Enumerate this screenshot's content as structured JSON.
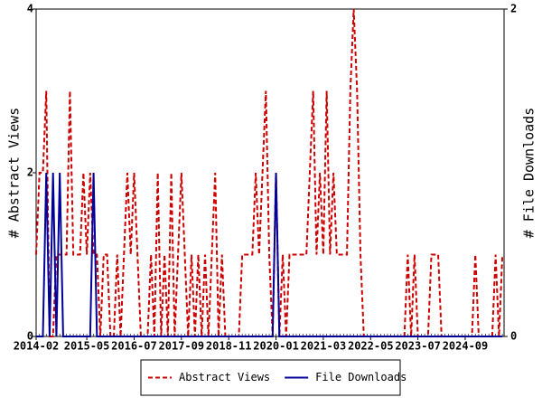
{
  "chart_data": {
    "type": "line",
    "y_label": "# Abstract Views",
    "y2_label": "# File Downloads",
    "categories": [
      "2014-02",
      null,
      null,
      null,
      null,
      null,
      null,
      null,
      null,
      null,
      null,
      null,
      null,
      null,
      null,
      "2015-05",
      null,
      null,
      null,
      null,
      null,
      null,
      null,
      null,
      null,
      null,
      null,
      null,
      null,
      "2016-07",
      null,
      null,
      null,
      null,
      null,
      null,
      null,
      null,
      null,
      null,
      null,
      null,
      null,
      "2017-09",
      null,
      null,
      null,
      null,
      null,
      null,
      null,
      null,
      null,
      null,
      null,
      null,
      null,
      "2018-11",
      null,
      null,
      null,
      null,
      null,
      null,
      null,
      null,
      null,
      null,
      null,
      null,
      null,
      "2020-01",
      null,
      null,
      null,
      null,
      null,
      null,
      null,
      null,
      null,
      null,
      null,
      null,
      null,
      "2021-03",
      null,
      null,
      null,
      null,
      null,
      null,
      null,
      null,
      null,
      null,
      null,
      null,
      null,
      "2022-05",
      null,
      null,
      null,
      null,
      null,
      null,
      null,
      null,
      null,
      null,
      null,
      null,
      null,
      "2023-07",
      null,
      null,
      null,
      null,
      null,
      null,
      null,
      null,
      null,
      null,
      null,
      null,
      null,
      "2024-09",
      null,
      null,
      null,
      null,
      null,
      null,
      null,
      null,
      null,
      null,
      null
    ],
    "series": [
      {
        "name": "Abstract Views",
        "color": "#cc0000",
        "dash": true,
        "values": [
          1,
          2,
          2,
          3,
          0,
          0,
          1,
          1,
          1,
          1,
          3,
          1,
          1,
          1,
          2,
          1,
          2,
          1,
          1,
          0,
          1,
          1,
          0,
          0,
          1,
          0,
          1,
          2,
          1,
          2,
          1,
          0,
          0,
          0,
          1,
          0,
          2,
          0,
          1,
          0,
          2,
          0,
          1,
          2,
          1,
          0,
          1,
          0,
          1,
          0,
          1,
          0,
          1,
          2,
          0,
          1,
          0,
          0,
          0,
          0,
          0,
          1,
          1,
          1,
          1,
          2,
          1,
          2,
          3,
          1,
          0,
          2,
          0,
          1,
          0,
          1,
          1,
          1,
          1,
          1,
          1,
          2,
          3,
          1,
          2,
          1,
          3,
          1,
          2,
          1,
          1,
          1,
          1,
          3,
          4,
          3,
          1,
          0,
          0,
          0,
          0,
          0,
          0,
          0,
          0,
          0,
          0,
          0,
          0,
          0,
          1,
          0,
          1,
          0,
          0,
          0,
          0,
          1,
          1,
          1,
          0,
          0,
          0,
          0,
          0,
          0,
          0,
          0,
          0,
          0,
          1,
          0,
          0,
          0,
          0,
          0,
          1,
          0,
          1
        ]
      },
      {
        "name": "File Downloads",
        "color": "#000099",
        "axis": "y2",
        "values": [
          0,
          0,
          0,
          1,
          0,
          1,
          0,
          1,
          0,
          0,
          0,
          0,
          0,
          0,
          0,
          0,
          0,
          1,
          0,
          0,
          0,
          0,
          0,
          0,
          0,
          0,
          0,
          0,
          0,
          0,
          0,
          0,
          0,
          0,
          0,
          0,
          0,
          0,
          0,
          0,
          0,
          0,
          0,
          0,
          0,
          0,
          0,
          0,
          0,
          0,
          0,
          0,
          0,
          0,
          0,
          0,
          0,
          0,
          0,
          0,
          0,
          0,
          0,
          0,
          0,
          0,
          0,
          0,
          0,
          0,
          0,
          1,
          0,
          0,
          0,
          0,
          0,
          0,
          0,
          0,
          0,
          0,
          0,
          0,
          0,
          0,
          0,
          0,
          0,
          0,
          0,
          0,
          0,
          0,
          0,
          0,
          0,
          0,
          0,
          0,
          0,
          0,
          0,
          0,
          0,
          0,
          0,
          0,
          0,
          0,
          0,
          0,
          0,
          0,
          0,
          0,
          0,
          0,
          0,
          0,
          0,
          0,
          0,
          0,
          0,
          0,
          0,
          0,
          0,
          0,
          0,
          0,
          0,
          0,
          0,
          0,
          0,
          0,
          0
        ]
      }
    ],
    "ylim": [
      0,
      4
    ],
    "yticks": [
      0,
      2,
      4
    ],
    "y2lim": [
      0,
      2
    ],
    "y2ticks": [
      0,
      2
    ],
    "legend": "bottom"
  }
}
